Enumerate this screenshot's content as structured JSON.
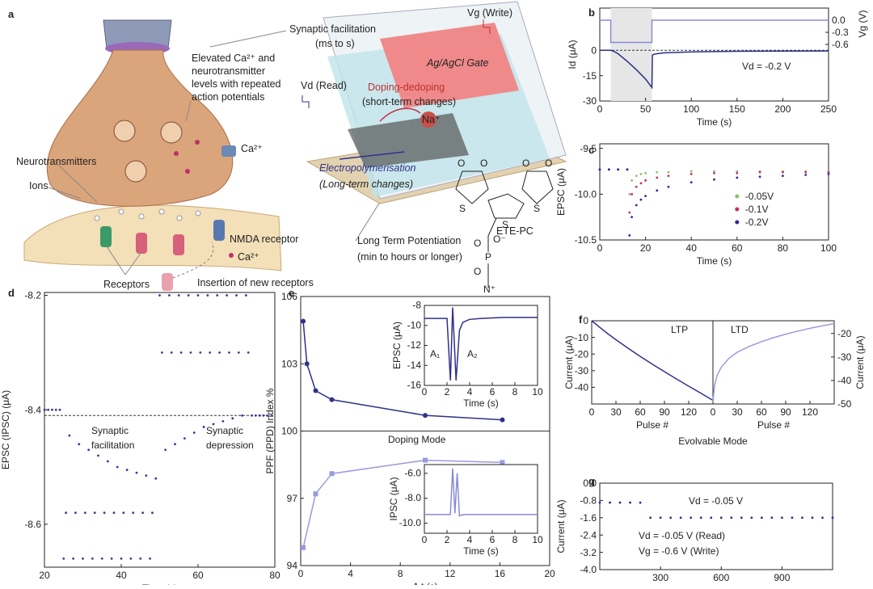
{
  "illustration": {
    "panel": "a",
    "elevated": [
      "Elevated Ca²⁺ and",
      "neurotransmitter",
      "levels with repeated",
      "action potentials"
    ],
    "ca_channel": "Ca²⁺",
    "neurotransmitters": "Neurotransmitters",
    "ions": "Ions",
    "nmda": "NMDA receptor",
    "ca_lower": "Ca²⁺",
    "receptors": "Receptors",
    "insertion": "Insertion of new receptors",
    "synaptic_facilitation": [
      "Synaptic facilitation",
      "(ms to s)"
    ],
    "vg_write": "Vg (Write)",
    "gate": "Ag/AgCl Gate",
    "doping": [
      "Doping-dedoping",
      "(short-term changes)"
    ],
    "vd_read": "Vd (Read)",
    "na": "Na⁺",
    "electropolymerisation": [
      "Electropolymerisation",
      "(Long-term changes)"
    ],
    "ltp": [
      "Long Term Potentiation",
      "(min to hours or longer)"
    ],
    "molecule": "ETE-PC",
    "molecule_atoms": [
      "O",
      "O",
      "O",
      "O",
      "S",
      "S",
      "S",
      "O",
      "O⁻",
      "P",
      "O",
      "N⁺"
    ]
  },
  "chart_data": [
    {
      "type": "line",
      "panel": "b",
      "xlabel": "Time (s)",
      "ylabel": "Id (μA)",
      "y2label": "Vg (V)",
      "xlim": [
        0,
        250
      ],
      "xticks": [
        0,
        50,
        100,
        150,
        200,
        250
      ],
      "ylim": [
        -30,
        25
      ],
      "yticks": [
        0,
        -15,
        -30
      ],
      "y2lim": [
        -2,
        0.3
      ],
      "y2ticks": [
        {
          "value": 0,
          "label": "0.0"
        },
        -0.3,
        -0.6
      ],
      "shaded_span": [
        12,
        57
      ],
      "reference_line": 0,
      "reference_style": "dashed",
      "annotations": [
        "Vd = -0.2 V"
      ],
      "series": [
        {
          "color": "#2e2e8a",
          "x": [
            0,
            12,
            15,
            20,
            30,
            40,
            50,
            57,
            57.5,
            60,
            70,
            100,
            150,
            200,
            250
          ],
          "values": [
            0,
            0,
            -0.5,
            -2,
            -6.5,
            -11.5,
            -17,
            -22,
            -2.8,
            -2.2,
            -1.5,
            -0.9,
            -0.6,
            -0.5,
            -0.4
          ]
        },
        {
          "color": "#8a8ad8",
          "axis": "y2",
          "x": [
            0,
            12,
            12,
            57,
            57,
            250
          ],
          "values": [
            0,
            0,
            -0.55,
            -0.55,
            0,
            0
          ]
        }
      ]
    },
    {
      "type": "scatter",
      "panel": "c",
      "xlabel": "Time (s)",
      "ylabel": "EPSC (μA)",
      "xlim": [
        0,
        100
      ],
      "xticks": [
        0,
        20,
        40,
        60,
        80,
        100
      ],
      "ylim": [
        -10.5,
        -9.45
      ],
      "yticks": [
        -9.5,
        {
          "value": -10,
          "label": "-10.0"
        },
        -10.5
      ],
      "legend": "center right",
      "x": [
        0,
        4,
        8,
        12,
        13,
        14,
        16,
        18,
        20,
        25,
        30,
        40,
        50,
        60,
        70,
        80,
        90,
        100
      ],
      "series": [
        {
          "name": "-0.05V",
          "color": "#8fbf6f",
          "values": [
            -9.73,
            -9.73,
            -9.73,
            -9.73,
            -10.0,
            -9.85,
            -9.8,
            -9.78,
            -9.77,
            -9.76,
            -9.76,
            -9.75,
            -9.75,
            -9.75,
            -9.75,
            -9.75,
            -9.75,
            -9.75
          ]
        },
        {
          "name": "-0.1V",
          "color": "#c0306a",
          "values": [
            -9.73,
            -9.73,
            -9.73,
            -9.73,
            -10.2,
            -10.0,
            -9.92,
            -9.88,
            -9.85,
            -9.82,
            -9.8,
            -9.78,
            -9.77,
            -9.77,
            -9.76,
            -9.76,
            -9.76,
            -9.76
          ]
        },
        {
          "name": "-0.2V",
          "color": "#2b2b9c",
          "values": [
            -9.73,
            -9.73,
            -9.73,
            -9.73,
            -10.45,
            -10.25,
            -10.12,
            -10.06,
            -10.02,
            -9.96,
            -9.92,
            -9.87,
            -9.84,
            -9.82,
            -9.81,
            -9.8,
            -9.79,
            -9.78
          ]
        }
      ]
    },
    {
      "type": "scatter",
      "panel": "d",
      "xlabel": "Time (s)",
      "ylabel": "EPSC (IPSC) (μA)",
      "xlim": [
        20,
        80
      ],
      "xticks": [
        20,
        40,
        60,
        80
      ],
      "ylim": [
        -8.675,
        -8.195
      ],
      "yticks": [
        -8.6,
        -8.4,
        -8.2
      ],
      "reference_line": -8.41,
      "reference_style": "dashed",
      "annotations": [
        [
          "Synaptic",
          "facilitation"
        ],
        [
          "Synaptic",
          "depression"
        ]
      ],
      "x": [
        20,
        21,
        22,
        23,
        24,
        25,
        25.6,
        26.5,
        27.5,
        28.1,
        29,
        30,
        30.6,
        31.5,
        32.5,
        33.1,
        34,
        35,
        35.6,
        36.5,
        37.5,
        38.1,
        39,
        40,
        40.6,
        41.5,
        42.5,
        43.1,
        44,
        45,
        45.6,
        46.5,
        47.5,
        48.1,
        49,
        50,
        50.6,
        51.5,
        52.5,
        53.1,
        54,
        55,
        55.6,
        56.5,
        57.5,
        58.1,
        59,
        60,
        60.6,
        61.5,
        62.5,
        63.1,
        64,
        65,
        65.6,
        66.5,
        67.5,
        68.1,
        69,
        70,
        70.6,
        71.5,
        72.5,
        73.1,
        74,
        75,
        76,
        77,
        78
      ],
      "series": [
        {
          "color": "#3a3a9a",
          "values": [
            -8.4,
            -8.4,
            -8.4,
            -8.4,
            -8.4,
            -8.66,
            -8.58,
            -8.445,
            -8.66,
            -8.58,
            -8.46,
            -8.66,
            -8.58,
            -8.47,
            -8.66,
            -8.58,
            -8.48,
            -8.66,
            -8.58,
            -8.49,
            -8.66,
            -8.58,
            -8.5,
            -8.66,
            -8.58,
            -8.505,
            -8.66,
            -8.58,
            -8.51,
            -8.66,
            -8.58,
            -8.515,
            -8.66,
            -8.58,
            -8.52,
            -8.2,
            -8.3,
            -8.47,
            -8.2,
            -8.3,
            -8.46,
            -8.2,
            -8.3,
            -8.45,
            -8.2,
            -8.3,
            -8.44,
            -8.2,
            -8.3,
            -8.43,
            -8.2,
            -8.3,
            -8.425,
            -8.2,
            -8.3,
            -8.42,
            -8.2,
            -8.3,
            -8.415,
            -8.2,
            -8.3,
            -8.41,
            -8.2,
            -8.3,
            -8.41,
            -8.41,
            -8.41,
            -8.41,
            -8.41
          ]
        }
      ]
    },
    {
      "type": "line",
      "panel": "e",
      "xlabel": "Δ t (s)",
      "ylabel": "PPF (PPD) Index %",
      "xlim": [
        0,
        20
      ],
      "xticks": [
        0,
        4,
        8,
        12,
        16,
        20
      ],
      "ylim": [
        94,
        106
      ],
      "yticks": [
        94,
        97,
        100,
        103,
        106
      ],
      "reference_line": 100,
      "reference_style": "solid",
      "annotations": [
        "Doping Mode"
      ],
      "series": [
        {
          "color": "#30308c",
          "marker": "circle",
          "x": [
            0.2,
            0.5,
            1.2,
            2.5,
            10,
            16.2
          ],
          "values": [
            104.9,
            103,
            101.8,
            101.4,
            100.7,
            100.5
          ]
        },
        {
          "color": "#9a9ae0",
          "marker": "square",
          "x": [
            0.2,
            1.2,
            2.5,
            10,
            16.2
          ],
          "values": [
            94.8,
            97.2,
            98.1,
            98.7,
            98.6
          ]
        }
      ]
    },
    {
      "type": "line",
      "xlabel": "Time (s)",
      "ylabel": "EPSC (μA)",
      "xlim": [
        0,
        10
      ],
      "xticks": [
        0,
        2,
        4,
        6,
        8,
        10
      ],
      "ylim": [
        -16,
        -8
      ],
      "yticks": [
        -8,
        -10,
        -12,
        -14,
        -16
      ],
      "annotations": [
        "A₁",
        "A₂"
      ],
      "series": [
        {
          "color": "#30308c",
          "x": [
            0,
            2,
            2.3,
            2.5,
            2.8,
            3.1,
            3.4,
            4,
            5,
            7,
            10
          ],
          "values": [
            -9.3,
            -9.3,
            -15.5,
            -8.2,
            -15.5,
            -10.5,
            -9.7,
            -9.4,
            -9.3,
            -9.2,
            -9.2
          ]
        }
      ]
    },
    {
      "type": "line",
      "xlabel": "Time (s)",
      "ylabel": "IPSC (μA)",
      "xlim": [
        0,
        10
      ],
      "xticks": [
        0,
        2,
        4,
        6,
        8,
        10
      ],
      "ylim": [
        -10.8,
        -5.3
      ],
      "yticks": [
        {
          "value": -6,
          "label": "-6.0"
        },
        {
          "value": -8,
          "label": "-8.0"
        },
        {
          "value": -10,
          "label": "-10.0"
        }
      ],
      "series": [
        {
          "color": "#8a8ad8",
          "x": [
            0,
            2.3,
            2.5,
            2.7,
            2.9,
            3.1,
            3.5,
            5,
            10
          ],
          "values": [
            -9.3,
            -9.3,
            -5.6,
            -9.2,
            -6,
            -9.4,
            -9.3,
            -9.3,
            -9.3
          ]
        }
      ]
    },
    {
      "type": "line",
      "panel": "f",
      "title": "LTP",
      "xlabel": "Pulse #",
      "ylabel": "Current (μA)",
      "xlim": [
        0,
        150
      ],
      "xticks": [
        0,
        30,
        60,
        90,
        120
      ],
      "ylim": [
        -50,
        0
      ],
      "yticks": [
        0,
        -10,
        -20,
        -30,
        -40
      ],
      "annotations": [
        "Evolvable Mode"
      ],
      "series": [
        {
          "color": "#30308c",
          "x": [
            0,
            10,
            20,
            30,
            45,
            60,
            75,
            90,
            105,
            120,
            135,
            150
          ],
          "values": [
            0,
            -4,
            -7.8,
            -11.4,
            -16.5,
            -21.4,
            -26.1,
            -30.6,
            -35,
            -39.3,
            -43.5,
            -47.8
          ]
        }
      ]
    },
    {
      "type": "line",
      "title": "LTD",
      "xlabel": "Pulse #",
      "ylabel": "Current (μA)",
      "y_axis_side": "right",
      "xlim": [
        0,
        150
      ],
      "xticks": [
        0,
        30,
        60,
        90,
        120
      ],
      "ylim": [
        -50,
        -14.6
      ],
      "yticks": [
        -20,
        -30,
        -40,
        -50
      ],
      "series": [
        {
          "color": "#9a9ae0",
          "x": [
            0,
            2,
            5,
            10,
            20,
            30,
            45,
            60,
            75,
            90,
            105,
            120,
            135,
            150
          ],
          "values": [
            -49,
            -42,
            -38,
            -34.5,
            -30.5,
            -28,
            -25.5,
            -23.5,
            -21.8,
            -20.3,
            -19,
            -17.8,
            -16.8,
            -15.8
          ]
        }
      ]
    },
    {
      "type": "scatter",
      "panel": "g",
      "xlabel": "Time (s)",
      "ylabel": "Current (μA)",
      "xlim": [
        0,
        1150
      ],
      "xticks": [
        300,
        600,
        900
      ],
      "ylim": [
        -4,
        0
      ],
      "yticks": [
        {
          "value": 0,
          "label": "0.0"
        },
        -0.8,
        -1.6,
        -2.4,
        -3.2,
        {
          "value": -4,
          "label": "-4.0"
        }
      ],
      "annotations": [
        "Vd = -0.05 V",
        "Vd = -0.05 V (Read)",
        "Vg = -0.6 V (Write)"
      ],
      "x": [
        0,
        50,
        100,
        150,
        200,
        250,
        300,
        350,
        400,
        450,
        500,
        550,
        600,
        650,
        700,
        750,
        800,
        850,
        900,
        950,
        1000,
        1050,
        1100,
        1150
      ],
      "series": [
        {
          "color": "#30308c",
          "values": [
            -0.9,
            -0.9,
            -0.9,
            -0.9,
            -0.9,
            -1.6,
            -1.6,
            -1.6,
            -1.6,
            -1.6,
            -1.6,
            -1.6,
            -1.6,
            -1.6,
            -1.6,
            -1.6,
            -1.6,
            -1.6,
            -1.6,
            -1.6,
            -1.6,
            -1.6,
            -1.6,
            -1.6
          ]
        }
      ]
    }
  ]
}
